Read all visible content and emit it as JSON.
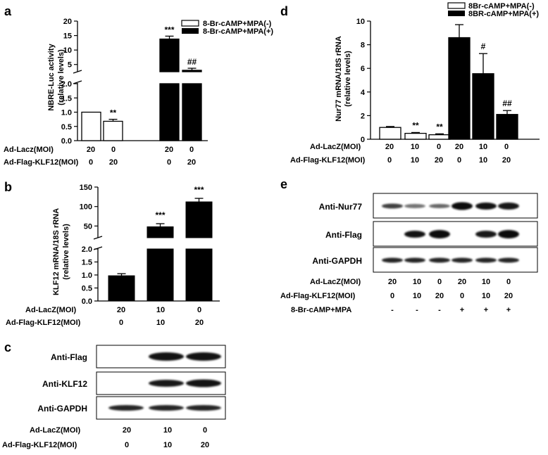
{
  "panels": {
    "a": {
      "letter": "a",
      "ylabel": "NBRE-Luc activity",
      "ylabel2": "(relative levels)",
      "legend": [
        "8-Br-cAMP+MPA(-)",
        "8-Br-cAMP+MPA(+)"
      ],
      "row_labels": [
        "Ad-Lacz(MOI)",
        "Ad-Flag-KLF12(MOI)"
      ],
      "rows": [
        [
          "20",
          "0",
          "20",
          "0"
        ],
        [
          "0",
          "20",
          "0",
          "20"
        ]
      ]
    },
    "b": {
      "letter": "b",
      "ylabel": "KLF12 mRNA/18S rRNA",
      "ylabel2": "(relative levels)",
      "row_labels": [
        "Ad-LacZ(MOI)",
        "Ad-Flag-KLF12(MOI)"
      ],
      "rows": [
        [
          "20",
          "10",
          "0"
        ],
        [
          "0",
          "10",
          "20"
        ]
      ]
    },
    "c": {
      "letter": "c",
      "blots": [
        "Anti-Flag",
        "Anti-KLF12",
        "Anti-GAPDH"
      ],
      "row_labels": [
        "Ad-LacZ(MOI)",
        "Ad-Flag-KLF12(MOI)"
      ],
      "rows": [
        [
          "20",
          "10",
          "0"
        ],
        [
          "0",
          "10",
          "20"
        ]
      ]
    },
    "d": {
      "letter": "d",
      "ylabel": "Nur77 mRNA/18S rRNA",
      "ylabel2": "(relative levels)",
      "legend": [
        "8Br-cAMP+MPA(-)",
        "8BR-cAMP+MPA(+)"
      ],
      "row_labels": [
        "Ad-LacZ(MOI)",
        "Ad-Flag-KLF12(MOI)"
      ],
      "rows": [
        [
          "20",
          "10",
          "0",
          "20",
          "10",
          "0"
        ],
        [
          "0",
          "10",
          "20",
          "0",
          "10",
          "20"
        ]
      ]
    },
    "e": {
      "letter": "e",
      "blots": [
        "Anti-Nur77",
        "Anti-Flag",
        "Anti-GAPDH"
      ],
      "row_labels": [
        "Ad-LacZ(MOI)",
        "Ad-Flag-KLF12(MOI)",
        "8-Br-cAMP+MPA"
      ],
      "rows": [
        [
          "20",
          "10",
          "0",
          "20",
          "10",
          "0"
        ],
        [
          "0",
          "10",
          "20",
          "0",
          "10",
          "20"
        ],
        [
          "-",
          "-",
          "-",
          "+",
          "+",
          "+"
        ]
      ]
    }
  },
  "chart_data": [
    {
      "panel": "a",
      "type": "bar",
      "ylabel": "NBRE-Luc activity (relative levels)",
      "axis_break": true,
      "yticks_lower": [
        "0.0",
        "0.5",
        "1.0",
        "1.5",
        "2.0"
      ],
      "yticks_upper": [
        "5",
        "10",
        "15",
        "20"
      ],
      "series": [
        {
          "name": "8-Br-cAMP+MPA(-)",
          "values": [
            1.0,
            0.68
          ],
          "errors": [
            0.0,
            0.07
          ],
          "fill": "#ffffff"
        },
        {
          "name": "8-Br-cAMP+MPA(+)",
          "values": [
            13.8,
            3.0
          ],
          "errors": [
            1.0,
            0.7
          ],
          "fill": "#000000"
        }
      ],
      "annotations": [
        "**",
        "***",
        "##"
      ]
    },
    {
      "panel": "b",
      "type": "bar",
      "ylabel": "KLF12 mRNA/18S rRNA (relative levels)",
      "axis_break": true,
      "yticks_lower": [
        "0.0",
        "0.5",
        "1.0",
        "1.5",
        "2.0"
      ],
      "yticks_upper": [
        "50",
        "100",
        "150"
      ],
      "values": [
        0.97,
        48,
        112
      ],
      "errors": [
        0.08,
        8,
        9
      ],
      "annotations": [
        "***",
        "***"
      ]
    },
    {
      "panel": "d",
      "type": "bar",
      "ylabel": "Nur77 mRNA/18S rRNA (relative levels)",
      "ylim": [
        0,
        10
      ],
      "yticks": [
        "0",
        "2",
        "4",
        "6",
        "8",
        "10"
      ],
      "series": [
        {
          "name": "8Br-cAMP+MPA(-)",
          "values": [
            1.0,
            0.5,
            0.38
          ],
          "errors": [
            0.08,
            0.07,
            0.08
          ],
          "fill": "#ffffff"
        },
        {
          "name": "8BR-cAMP+MPA(+)",
          "values": [
            8.6,
            5.55,
            2.1
          ],
          "errors": [
            1.1,
            1.7,
            0.33
          ],
          "fill": "#000000"
        }
      ],
      "annotations": [
        "**",
        "**",
        "#",
        "##"
      ]
    }
  ]
}
